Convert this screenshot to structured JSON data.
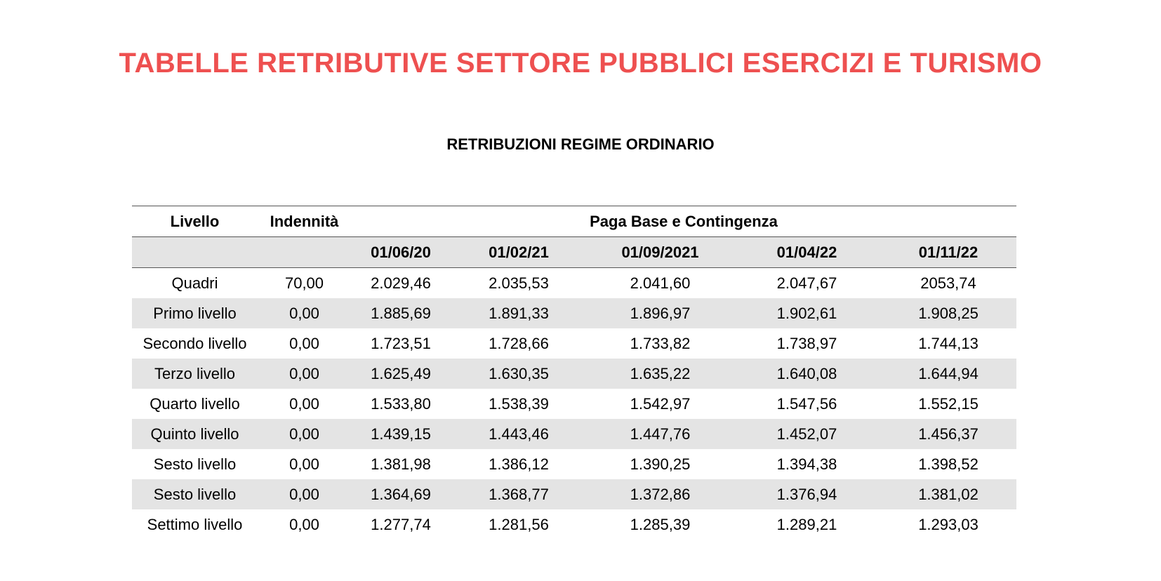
{
  "document": {
    "title": "TABELLE RETRIBUTIVE SETTORE PUBBLICI ESERCIZI E TURISMO",
    "subtitle": "RETRIBUZIONI REGIME ORDINARIO",
    "accent_color": "#ee5050"
  },
  "table": {
    "header": {
      "livello": "Livello",
      "indennita": "Indennità",
      "group": "Paga Base e Contingenza",
      "dates": [
        "01/06/20",
        "01/02/21",
        "01/09/2021",
        "01/04/22",
        "01/11/22"
      ]
    },
    "rows": [
      {
        "livello": "Quadri",
        "indennita": "70,00",
        "values": [
          "2.029,46",
          "2.035,53",
          "2.041,60",
          "2.047,67",
          "2053,74"
        ]
      },
      {
        "livello": "Primo livello",
        "indennita": "0,00",
        "values": [
          "1.885,69",
          "1.891,33",
          "1.896,97",
          "1.902,61",
          "1.908,25"
        ]
      },
      {
        "livello": "Secondo livello",
        "indennita": "0,00",
        "values": [
          "1.723,51",
          "1.728,66",
          "1.733,82",
          "1.738,97",
          "1.744,13"
        ]
      },
      {
        "livello": "Terzo livello",
        "indennita": "0,00",
        "values": [
          "1.625,49",
          "1.630,35",
          "1.635,22",
          "1.640,08",
          "1.644,94"
        ]
      },
      {
        "livello": "Quarto livello",
        "indennita": "0,00",
        "values": [
          "1.533,80",
          "1.538,39",
          "1.542,97",
          "1.547,56",
          "1.552,15"
        ]
      },
      {
        "livello": "Quinto livello",
        "indennita": "0,00",
        "values": [
          "1.439,15",
          "1.443,46",
          "1.447,76",
          "1.452,07",
          "1.456,37"
        ]
      },
      {
        "livello": "Sesto livello",
        "indennita": "0,00",
        "values": [
          "1.381,98",
          "1.386,12",
          "1.390,25",
          "1.394,38",
          "1.398,52"
        ]
      },
      {
        "livello": "Sesto livello",
        "indennita": "0,00",
        "values": [
          "1.364,69",
          "1.368,77",
          "1.372,86",
          "1.376,94",
          "1.381,02"
        ]
      },
      {
        "livello": "Settimo livello",
        "indennita": "0,00",
        "values": [
          "1.277,74",
          "1.281,56",
          "1.285,39",
          "1.289,21",
          "1.293,03"
        ]
      }
    ]
  }
}
